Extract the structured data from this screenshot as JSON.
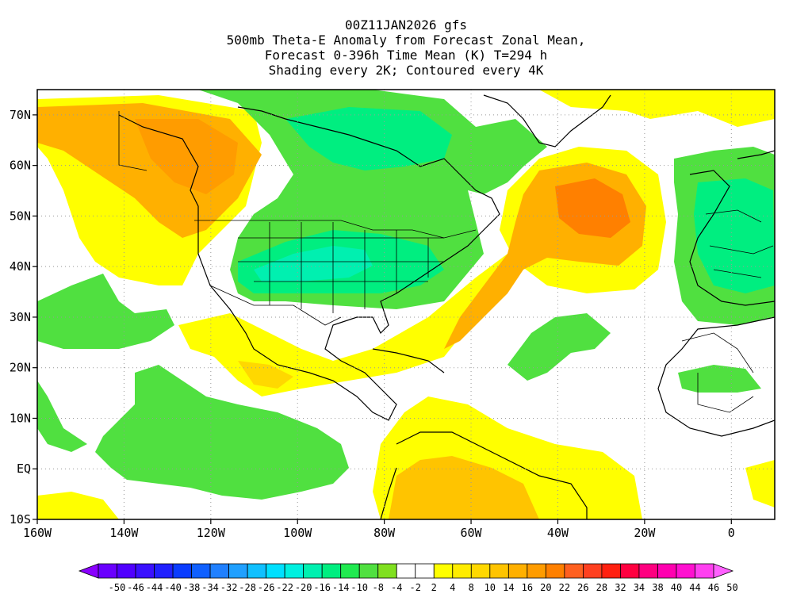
{
  "title": {
    "line1": "00Z11JAN2026 gfs",
    "line2": "500mb Theta-E Anomaly from Forecast Zonal Mean,",
    "line3": "Forecast 0-396h Time Mean (K) T=294 h",
    "line4": "Shading every 2K; Contoured every 4K"
  },
  "map": {
    "lat_labels": [
      "70N",
      "60N",
      "50N",
      "40N",
      "30N",
      "20N",
      "10N",
      "EQ",
      "10S"
    ],
    "lat_values": [
      70,
      60,
      50,
      40,
      30,
      20,
      10,
      0,
      -10
    ],
    "lon_labels": [
      "160W",
      "140W",
      "120W",
      "100W",
      "80W",
      "60W",
      "40W",
      "20W",
      "0"
    ],
    "lon_values": [
      -160,
      -140,
      -120,
      -100,
      -80,
      -60,
      -40,
      -20,
      0
    ],
    "lon_range": [
      -160,
      10
    ],
    "lat_range": [
      -10,
      75
    ],
    "grid": true
  },
  "colorbar": {
    "labels": [
      "-50",
      "-46",
      "-44",
      "-40",
      "-38",
      "-34",
      "-32",
      "-28",
      "-26",
      "-22",
      "-20",
      "-16",
      "-14",
      "-10",
      "-8",
      "-4",
      "-2",
      "2",
      "4",
      "8",
      "10",
      "14",
      "16",
      "20",
      "22",
      "26",
      "28",
      "32",
      "34",
      "38",
      "40",
      "44",
      "46",
      "50"
    ],
    "colors": [
      "#8a00ff",
      "#6a00ff",
      "#5000ff",
      "#3a10ff",
      "#2020ff",
      "#0a3cff",
      "#1060ff",
      "#2080ff",
      "#20a0ff",
      "#10c0ff",
      "#00e0ff",
      "#00f0e0",
      "#00f0b0",
      "#00ee80",
      "#20ea50",
      "#50e040",
      "#80e020",
      "#ffffff",
      "#ffffff",
      "#ffff00",
      "#ffec00",
      "#ffd800",
      "#ffc400",
      "#ffb000",
      "#ff9c00",
      "#ff8000",
      "#ff6020",
      "#ff4020",
      "#ff2010",
      "#ff0040",
      "#ff0080",
      "#ff00b0",
      "#ff10d0",
      "#ff40f0",
      "#ff60ff"
    ]
  }
}
